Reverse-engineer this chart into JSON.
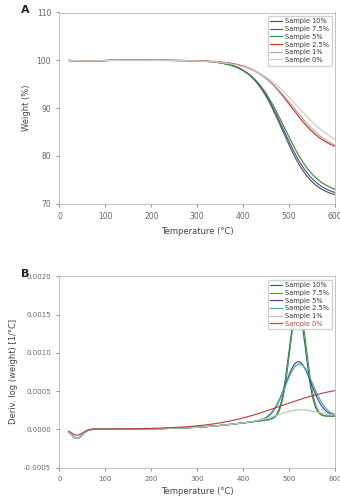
{
  "title_A": "A",
  "title_B": "B",
  "xlabel": "Temperature (°C)",
  "ylabel_A": "Weight (%)",
  "ylabel_B": "Deriv. log (weight) [1/°C]",
  "xlim": [
    0,
    600
  ],
  "ylim_A": [
    70,
    110
  ],
  "ylim_B": [
    -0.0005,
    0.002
  ],
  "yticks_A": [
    70,
    80,
    90,
    100,
    110
  ],
  "yticks_B": [
    -0.0005,
    0.0,
    0.0005,
    0.001,
    0.0015,
    0.002
  ],
  "xticks": [
    0,
    100,
    200,
    300,
    400,
    500,
    600
  ],
  "legend_labels_A": [
    "Sample 10%",
    "Sample 7.5%",
    "Sample 5%",
    "Sample 2.5%",
    "Sample 1%",
    "Sample 0%"
  ],
  "legend_labels_B": [
    "Sample 10%",
    "Sample 7.5%",
    "Sample 5%",
    "Sample 2.5%",
    "Sample 1%",
    "Sample 0%"
  ],
  "colors_A": [
    "#555555",
    "#5050a0",
    "#3a8a3a",
    "#cc3322",
    "#aaaaaa",
    "#d4c8c0"
  ],
  "colors_B": [
    "#336666",
    "#4a9a4a",
    "#4444aa",
    "#44aa99",
    "#b8c8a8",
    "#bb4444"
  ],
  "background_color": "#ffffff",
  "spine_color": "#aaaaaa",
  "tick_color": "#666666",
  "label_color": "#444444"
}
